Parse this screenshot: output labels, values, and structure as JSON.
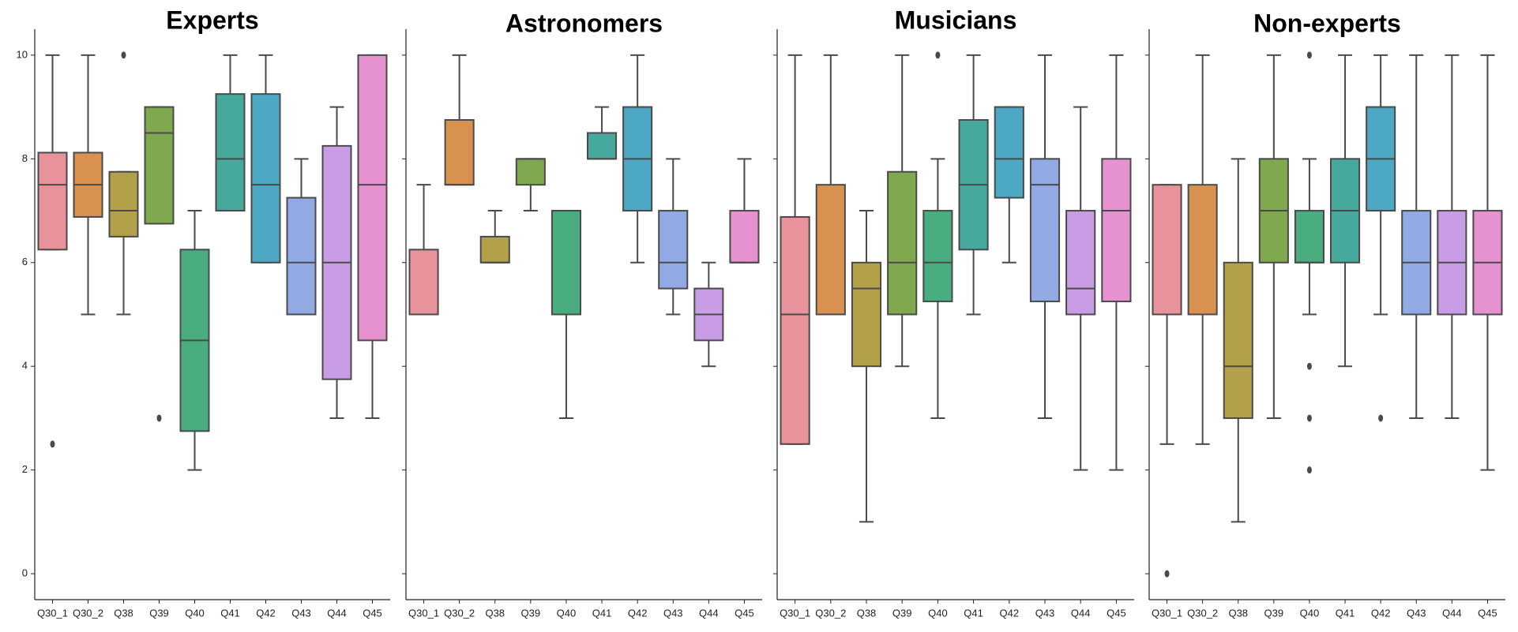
{
  "chart_data": [
    {
      "type": "box",
      "title": "Experts",
      "categories": [
        "Q30_1",
        "Q30_2",
        "Q38",
        "Q39",
        "Q40",
        "Q41",
        "Q42",
        "Q43",
        "Q44",
        "Q45"
      ],
      "colors": [
        "#e8939c",
        "#d9914f",
        "#b3a14a",
        "#80a84f",
        "#4aad7f",
        "#47a99b",
        "#4da9c3",
        "#92aae3",
        "#c99de6",
        "#e691d0"
      ],
      "boxes": [
        {
          "whislo": 6.25,
          "q1": 6.25,
          "med": 7.5,
          "q3": 8.12,
          "whishi": 10,
          "fliers": [
            2.5
          ]
        },
        {
          "whislo": 5,
          "q1": 6.88,
          "med": 7.5,
          "q3": 8.12,
          "whishi": 10,
          "fliers": []
        },
        {
          "whislo": 5,
          "q1": 6.5,
          "med": 7,
          "q3": 7.75,
          "whishi": 7.75,
          "fliers": [
            10
          ]
        },
        {
          "whislo": 6.75,
          "q1": 6.75,
          "med": 8.5,
          "q3": 9,
          "whishi": 9,
          "fliers": [
            3
          ]
        },
        {
          "whislo": 2,
          "q1": 2.75,
          "med": 4.5,
          "q3": 6.25,
          "whishi": 7,
          "fliers": []
        },
        {
          "whislo": 7,
          "q1": 7,
          "med": 8,
          "q3": 9.25,
          "whishi": 10,
          "fliers": []
        },
        {
          "whislo": 6,
          "q1": 6,
          "med": 7.5,
          "q3": 9.25,
          "whishi": 10,
          "fliers": []
        },
        {
          "whislo": 5,
          "q1": 5,
          "med": 6,
          "q3": 7.25,
          "whishi": 8,
          "fliers": []
        },
        {
          "whislo": 3,
          "q1": 3.75,
          "med": 6,
          "q3": 8.25,
          "whishi": 9,
          "fliers": []
        },
        {
          "whislo": 3,
          "q1": 4.5,
          "med": 7.5,
          "q3": 10,
          "whishi": 10,
          "fliers": []
        }
      ],
      "ylim": [
        -0.5,
        10.5
      ],
      "yticks": [
        0,
        2,
        4,
        6,
        8,
        10
      ]
    },
    {
      "type": "box",
      "title": "Astronomers",
      "categories": [
        "Q30_1",
        "Q30_2",
        "Q38",
        "Q39",
        "Q40",
        "Q41",
        "Q42",
        "Q43",
        "Q44",
        "Q45"
      ],
      "colors": [
        "#e8939c",
        "#d9914f",
        "#b3a14a",
        "#80a84f",
        "#4aad7f",
        "#47a99b",
        "#4da9c3",
        "#92aae3",
        "#c99de6",
        "#e691d0"
      ],
      "boxes": [
        {
          "whislo": 5,
          "q1": 5,
          "med": 5,
          "q3": 6.25,
          "whishi": 7.5,
          "fliers": []
        },
        {
          "whislo": 7.5,
          "q1": 7.5,
          "med": 7.5,
          "q3": 8.75,
          "whishi": 10,
          "fliers": []
        },
        {
          "whislo": 6,
          "q1": 6,
          "med": 6,
          "q3": 6.5,
          "whishi": 7,
          "fliers": []
        },
        {
          "whislo": 7,
          "q1": 7.5,
          "med": 8,
          "q3": 8,
          "whishi": 8,
          "fliers": []
        },
        {
          "whislo": 3,
          "q1": 5,
          "med": 7,
          "q3": 7,
          "whishi": 7,
          "fliers": []
        },
        {
          "whislo": 8,
          "q1": 8,
          "med": 8,
          "q3": 8.5,
          "whishi": 9,
          "fliers": []
        },
        {
          "whislo": 6,
          "q1": 7,
          "med": 8,
          "q3": 9,
          "whishi": 10,
          "fliers": []
        },
        {
          "whislo": 5,
          "q1": 5.5,
          "med": 6,
          "q3": 7,
          "whishi": 8,
          "fliers": []
        },
        {
          "whislo": 4,
          "q1": 4.5,
          "med": 5,
          "q3": 5.5,
          "whishi": 6,
          "fliers": []
        },
        {
          "whislo": 6,
          "q1": 6,
          "med": 6,
          "q3": 7,
          "whishi": 8,
          "fliers": []
        }
      ],
      "ylim": [
        -0.5,
        10.5
      ],
      "yticks": [
        0,
        2,
        4,
        6,
        8,
        10
      ]
    },
    {
      "type": "box",
      "title": "Musicians",
      "categories": [
        "Q30_1",
        "Q30_2",
        "Q38",
        "Q39",
        "Q40",
        "Q41",
        "Q42",
        "Q43",
        "Q44",
        "Q45"
      ],
      "colors": [
        "#e8939c",
        "#d9914f",
        "#b3a14a",
        "#80a84f",
        "#4aad7f",
        "#47a99b",
        "#4da9c3",
        "#92aae3",
        "#c99de6",
        "#e691d0"
      ],
      "boxes": [
        {
          "whislo": 2.5,
          "q1": 2.5,
          "med": 5,
          "q3": 6.88,
          "whishi": 10,
          "fliers": []
        },
        {
          "whislo": 5,
          "q1": 5,
          "med": 5,
          "q3": 7.5,
          "whishi": 10,
          "fliers": []
        },
        {
          "whislo": 1,
          "q1": 4,
          "med": 5.5,
          "q3": 6,
          "whishi": 7,
          "fliers": []
        },
        {
          "whislo": 4,
          "q1": 5,
          "med": 6,
          "q3": 7.75,
          "whishi": 10,
          "fliers": []
        },
        {
          "whislo": 3,
          "q1": 5.25,
          "med": 6,
          "q3": 7,
          "whishi": 8,
          "fliers": [
            10
          ]
        },
        {
          "whislo": 5,
          "q1": 6.25,
          "med": 7.5,
          "q3": 8.75,
          "whishi": 10,
          "fliers": []
        },
        {
          "whislo": 6,
          "q1": 7.25,
          "med": 8,
          "q3": 9,
          "whishi": 9,
          "fliers": []
        },
        {
          "whislo": 3,
          "q1": 5.25,
          "med": 7.5,
          "q3": 8,
          "whishi": 10,
          "fliers": []
        },
        {
          "whislo": 2,
          "q1": 5,
          "med": 5.5,
          "q3": 7,
          "whishi": 9,
          "fliers": []
        },
        {
          "whislo": 2,
          "q1": 5.25,
          "med": 7,
          "q3": 8,
          "whishi": 10,
          "fliers": []
        }
      ],
      "ylim": [
        -0.5,
        10.5
      ],
      "yticks": [
        0,
        2,
        4,
        6,
        8,
        10
      ]
    },
    {
      "type": "box",
      "title": "Non-experts",
      "categories": [
        "Q30_1",
        "Q30_2",
        "Q38",
        "Q39",
        "Q40",
        "Q41",
        "Q42",
        "Q43",
        "Q44",
        "Q45"
      ],
      "colors": [
        "#e8939c",
        "#d9914f",
        "#b3a14a",
        "#80a84f",
        "#4aad7f",
        "#47a99b",
        "#4da9c3",
        "#92aae3",
        "#c99de6",
        "#e691d0"
      ],
      "boxes": [
        {
          "whislo": 2.5,
          "q1": 5,
          "med": 5,
          "q3": 7.5,
          "whishi": 7.5,
          "fliers": [
            0
          ]
        },
        {
          "whislo": 2.5,
          "q1": 5,
          "med": 5,
          "q3": 7.5,
          "whishi": 10,
          "fliers": []
        },
        {
          "whislo": 1,
          "q1": 3,
          "med": 4,
          "q3": 6,
          "whishi": 8,
          "fliers": []
        },
        {
          "whislo": 3,
          "q1": 6,
          "med": 7,
          "q3": 8,
          "whishi": 10,
          "fliers": []
        },
        {
          "whislo": 5,
          "q1": 6,
          "med": 6,
          "q3": 7,
          "whishi": 8,
          "fliers": [
            10,
            4,
            3,
            2
          ]
        },
        {
          "whislo": 4,
          "q1": 6,
          "med": 7,
          "q3": 8,
          "whishi": 10,
          "fliers": []
        },
        {
          "whislo": 5,
          "q1": 7,
          "med": 8,
          "q3": 9,
          "whishi": 10,
          "fliers": [
            3
          ]
        },
        {
          "whislo": 3,
          "q1": 5,
          "med": 6,
          "q3": 7,
          "whishi": 10,
          "fliers": []
        },
        {
          "whislo": 3,
          "q1": 5,
          "med": 6,
          "q3": 7,
          "whishi": 10,
          "fliers": []
        },
        {
          "whislo": 2,
          "q1": 5,
          "med": 6,
          "q3": 7,
          "whishi": 10,
          "fliers": []
        }
      ],
      "ylim": [
        -0.5,
        10.5
      ],
      "yticks": [
        0,
        2,
        4,
        6,
        8,
        10
      ]
    }
  ]
}
